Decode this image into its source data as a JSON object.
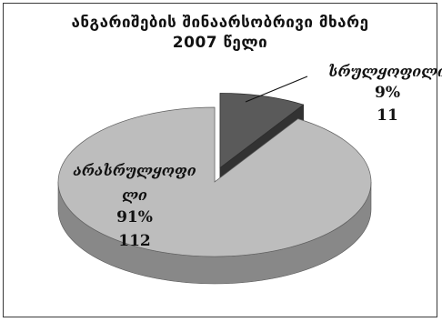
{
  "chart_data": {
    "type": "pie",
    "title_lines": [
      "ანგარიშების შინაარსობრივი მხარე",
      "2007 წელი"
    ],
    "slices": [
      {
        "label": "სრულყოფილი",
        "percent": "9%",
        "value": 11,
        "color": "#5a5a5a"
      },
      {
        "label_lines": [
          "არასრულყოფი",
          "ლი"
        ],
        "percent": "91%",
        "value": 112,
        "color": "#bdbdbd"
      }
    ],
    "three_d": true,
    "exploded_slice": "სრულყოფილი",
    "data_labels": "inside/leader-line"
  }
}
